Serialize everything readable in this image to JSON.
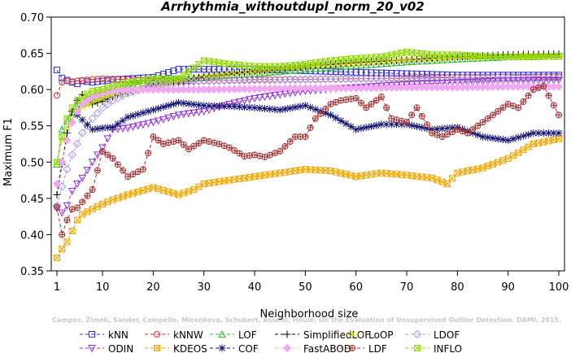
{
  "chart_data": {
    "type": "line",
    "title": "Arrhythmia_withoutdupl_norm_20_v02",
    "xlabel": "Neighborhood size",
    "ylabel": "Maximum F1",
    "xlim": [
      1,
      100
    ],
    "ylim": [
      0.35,
      0.7
    ],
    "xticks": [
      1,
      10,
      20,
      30,
      40,
      50,
      60,
      70,
      80,
      90,
      100
    ],
    "yticks": [
      0.35,
      0.4,
      0.45,
      0.5,
      0.55,
      0.6,
      0.65,
      0.7
    ],
    "grid": false,
    "legend_position": "bottom",
    "watermark": "Campos, Zimek, Sander, Campello, Micenkova, Schubert, Assent, Houle: On the Evaluation of Unsupervised Outlier Detection. DAMI, 2015.",
    "series": [
      {
        "name": "kNN",
        "color": "#3030d8",
        "marker": "square",
        "x": [
          1,
          2,
          3,
          4,
          5,
          6,
          8,
          10,
          15,
          20,
          25,
          30,
          40,
          50,
          60,
          70,
          80,
          90,
          100
        ],
        "y": [
          0.627,
          0.616,
          0.613,
          0.61,
          0.608,
          0.612,
          0.61,
          0.612,
          0.615,
          0.617,
          0.628,
          0.628,
          0.628,
          0.626,
          0.624,
          0.622,
          0.62,
          0.62,
          0.62
        ]
      },
      {
        "name": "kNNW",
        "color": "#d83030",
        "marker": "circle",
        "x": [
          1,
          2,
          3,
          4,
          5,
          8,
          10,
          15,
          20,
          30,
          40,
          50,
          60,
          70,
          80,
          90,
          100
        ],
        "y": [
          0.592,
          0.61,
          0.612,
          0.611,
          0.612,
          0.614,
          0.615,
          0.614,
          0.612,
          0.612,
          0.614,
          0.614,
          0.615,
          0.616,
          0.617,
          0.617,
          0.618
        ]
      },
      {
        "name": "LOF",
        "color": "#30b830",
        "marker": "triangle",
        "x": [
          1,
          2,
          3,
          4,
          5,
          6,
          8,
          10,
          12,
          15,
          20,
          25,
          30,
          40,
          50,
          60,
          70,
          80,
          90,
          100
        ],
        "y": [
          0.497,
          0.545,
          0.557,
          0.568,
          0.575,
          0.58,
          0.585,
          0.592,
          0.598,
          0.604,
          0.612,
          0.615,
          0.617,
          0.622,
          0.628,
          0.633,
          0.638,
          0.642,
          0.645,
          0.646
        ]
      },
      {
        "name": "SimplifiedLOF",
        "color": "#000000",
        "marker": "plus",
        "x": [
          1,
          2,
          3,
          4,
          5,
          6,
          8,
          10,
          12,
          15,
          20,
          25,
          30,
          40,
          50,
          60,
          70,
          80,
          90,
          100
        ],
        "y": [
          0.455,
          0.497,
          0.54,
          0.57,
          0.585,
          0.593,
          0.58,
          0.584,
          0.59,
          0.597,
          0.605,
          0.61,
          0.618,
          0.625,
          0.632,
          0.637,
          0.641,
          0.645,
          0.648,
          0.649
        ]
      },
      {
        "name": "LoOP",
        "color": "#d8d800",
        "marker": "x",
        "x": [
          1,
          2,
          3,
          4,
          5,
          6,
          8,
          10,
          12,
          15,
          20,
          25,
          30,
          40,
          50,
          60,
          70,
          80,
          90,
          100
        ],
        "y": [
          0.5,
          0.53,
          0.548,
          0.56,
          0.57,
          0.575,
          0.582,
          0.588,
          0.592,
          0.598,
          0.605,
          0.612,
          0.618,
          0.625,
          0.632,
          0.636,
          0.641,
          0.644,
          0.646,
          0.647
        ]
      },
      {
        "name": "LDOF",
        "color": "#a898e8",
        "marker": "diamond",
        "x": [
          1,
          2,
          3,
          4,
          5,
          6,
          8,
          10,
          12,
          15,
          20,
          25,
          30,
          40,
          50,
          60,
          70,
          80,
          90,
          100
        ],
        "y": [
          0.44,
          0.466,
          0.49,
          0.51,
          0.525,
          0.54,
          0.56,
          0.575,
          0.585,
          0.595,
          0.605,
          0.61,
          0.612,
          0.613,
          0.614,
          0.615,
          0.615,
          0.616,
          0.617,
          0.617
        ]
      },
      {
        "name": "ODIN",
        "color": "#9030d8",
        "marker": "triangle-down",
        "x": [
          1,
          2,
          3,
          4,
          5,
          6,
          8,
          10,
          12,
          15,
          20,
          25,
          30,
          35,
          40,
          50,
          60,
          70,
          80,
          90,
          100
        ],
        "y": [
          0.436,
          0.43,
          0.44,
          0.46,
          0.47,
          0.478,
          0.5,
          0.52,
          0.545,
          0.547,
          0.555,
          0.565,
          0.57,
          0.58,
          0.588,
          0.598,
          0.603,
          0.607,
          0.61,
          0.612,
          0.613
        ]
      },
      {
        "name": "KDEOS",
        "color": "#f0a800",
        "marker": "square-x",
        "x": [
          1,
          2,
          3,
          4,
          5,
          6,
          8,
          10,
          12,
          15,
          20,
          25,
          28,
          30,
          35,
          40,
          45,
          50,
          55,
          60,
          65,
          70,
          75,
          78,
          80,
          85,
          90,
          95,
          100
        ],
        "y": [
          0.368,
          0.38,
          0.39,
          0.405,
          0.42,
          0.428,
          0.435,
          0.442,
          0.448,
          0.455,
          0.465,
          0.455,
          0.462,
          0.47,
          0.475,
          0.48,
          0.485,
          0.49,
          0.488,
          0.48,
          0.485,
          0.482,
          0.478,
          0.47,
          0.485,
          0.492,
          0.505,
          0.525,
          0.532
        ]
      },
      {
        "name": "COF",
        "color": "#101070",
        "marker": "star",
        "x": [
          5,
          8,
          10,
          12,
          15,
          20,
          25,
          30,
          35,
          40,
          45,
          50,
          55,
          60,
          65,
          70,
          75,
          80,
          85,
          90,
          95,
          100
        ],
        "y": [
          0.565,
          0.545,
          0.547,
          0.548,
          0.562,
          0.572,
          0.582,
          0.578,
          0.577,
          0.575,
          0.572,
          0.578,
          0.565,
          0.545,
          0.552,
          0.552,
          0.545,
          0.548,
          0.535,
          0.53,
          0.54,
          0.54
        ]
      },
      {
        "name": "FastABOD",
        "color": "#f0a8f0",
        "marker": "diamond-filled",
        "x": [
          1,
          2,
          3,
          4,
          5,
          6,
          8,
          10,
          12,
          15,
          20,
          25,
          30,
          40,
          50,
          60,
          70,
          80,
          90,
          100
        ],
        "y": [
          0.47,
          0.5,
          0.53,
          0.555,
          0.57,
          0.58,
          0.59,
          0.595,
          0.598,
          0.6,
          0.6,
          0.6,
          0.6,
          0.601,
          0.602,
          0.602,
          0.603,
          0.603,
          0.604,
          0.604
        ]
      },
      {
        "name": "LDF",
        "color": "#a03030",
        "marker": "circle-plus",
        "x": [
          1,
          2,
          3,
          4,
          5,
          6,
          8,
          10,
          12,
          15,
          18,
          20,
          22,
          25,
          27,
          30,
          33,
          35,
          38,
          40,
          42,
          45,
          48,
          50,
          52,
          55,
          57,
          60,
          62,
          65,
          67,
          70,
          72,
          75,
          77,
          80,
          82,
          85,
          87,
          90,
          92,
          95,
          97,
          100
        ],
        "y": [
          0.438,
          0.4,
          0.42,
          0.435,
          0.437,
          0.445,
          0.462,
          0.515,
          0.505,
          0.48,
          0.49,
          0.535,
          0.525,
          0.53,
          0.518,
          0.53,
          0.525,
          0.52,
          0.508,
          0.51,
          0.507,
          0.515,
          0.535,
          0.535,
          0.56,
          0.58,
          0.585,
          0.588,
          0.575,
          0.59,
          0.56,
          0.555,
          0.575,
          0.54,
          0.535,
          0.545,
          0.54,
          0.555,
          0.565,
          0.58,
          0.575,
          0.6,
          0.605,
          0.565
        ]
      },
      {
        "name": "INFLO",
        "color": "#90d800",
        "marker": "square-x",
        "x": [
          1,
          2,
          3,
          4,
          5,
          6,
          8,
          10,
          12,
          15,
          20,
          25,
          28,
          30,
          35,
          40,
          45,
          50,
          55,
          60,
          65,
          70,
          75,
          80,
          85,
          90,
          95,
          100
        ],
        "y": [
          0.5,
          0.535,
          0.56,
          0.575,
          0.585,
          0.59,
          0.598,
          0.6,
          0.605,
          0.61,
          0.615,
          0.615,
          0.63,
          0.64,
          0.635,
          0.632,
          0.632,
          0.635,
          0.64,
          0.643,
          0.645,
          0.652,
          0.648,
          0.648,
          0.646,
          0.645,
          0.645,
          0.646
        ]
      }
    ]
  }
}
